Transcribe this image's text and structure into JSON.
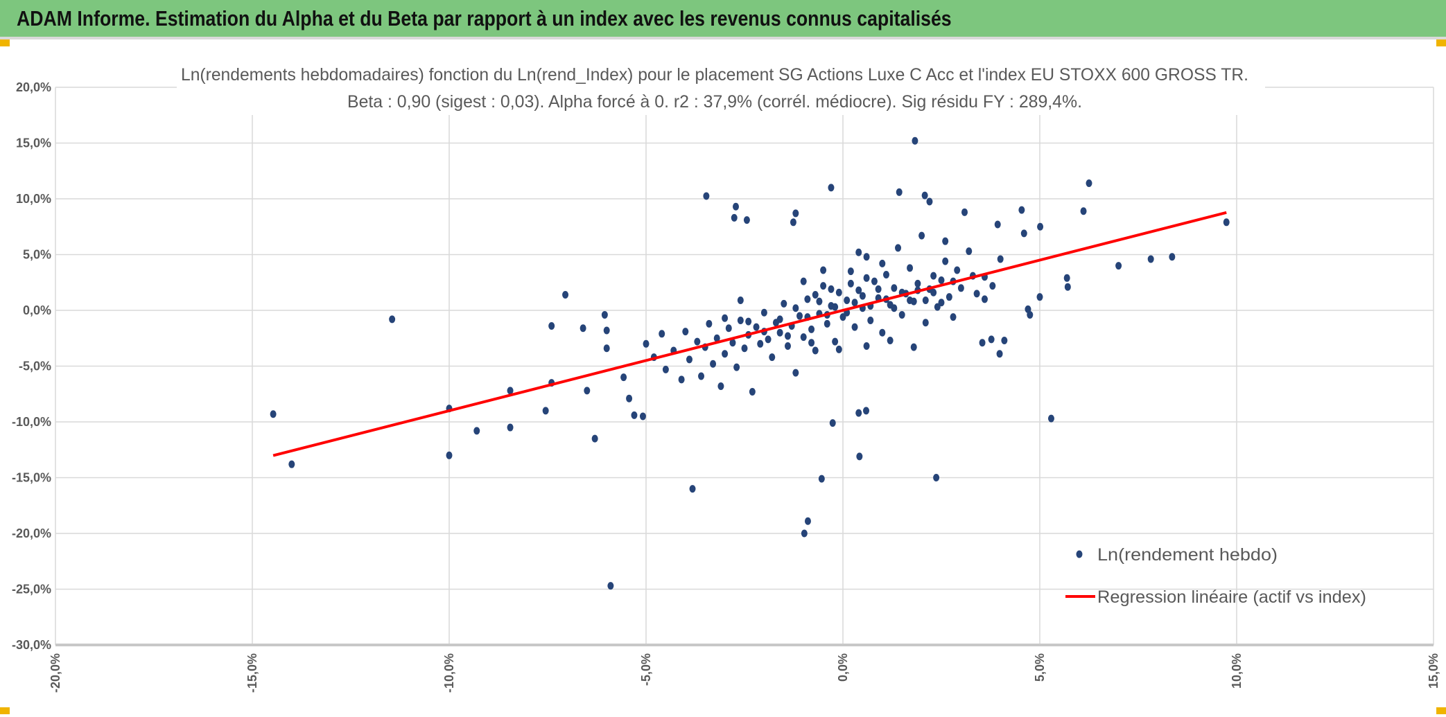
{
  "header": {
    "title": "ADAM Informe. Estimation du Alpha et du Beta par rapport à un index avec les revenus connus capitalisés",
    "background": "#7dc67e"
  },
  "chart_data": {
    "type": "scatter",
    "title": "Ln(rendements hebdomadaires) fonction du Ln(rend_Index) pour le placement SG Actions Luxe C Acc et l'index EU STOXX 600 GROSS TR.",
    "subtitle": "Beta : 0,90 (sigest : 0,03). Alpha forcé à 0. r2 : 37,9% (corrél. médiocre). Sig résidu FY : 289,4%.",
    "xlabel": "",
    "ylabel": "",
    "xlim": [
      -20,
      15
    ],
    "ylim": [
      -30,
      20
    ],
    "x_ticks": [
      "-20,0%",
      "-15,0%",
      "-10,0%",
      "-5,0%",
      "0,0%",
      "5,0%",
      "10,0%",
      "15,0%"
    ],
    "y_ticks": [
      "20,0%",
      "15,0%",
      "10,0%",
      "5,0%",
      "0,0%",
      "-5,0%",
      "-10,0%",
      "-15,0%",
      "-20,0%",
      "-25,0%",
      "-30,0%"
    ],
    "grid": true,
    "legend_position": "bottom-right",
    "series": [
      {
        "name": "Ln(rendement hebdo)",
        "color": "#264478",
        "points": [
          [
            -14.47,
            -9.3
          ],
          [
            -14.0,
            -13.8
          ],
          [
            -11.45,
            -0.8
          ],
          [
            -10.0,
            -8.8
          ],
          [
            -10.0,
            -13.0
          ],
          [
            -9.3,
            -10.8
          ],
          [
            -8.45,
            -7.2
          ],
          [
            -8.45,
            -10.5
          ],
          [
            -7.55,
            -9.0
          ],
          [
            -7.4,
            -1.4
          ],
          [
            -7.4,
            -6.5
          ],
          [
            -7.05,
            1.4
          ],
          [
            -6.6,
            -1.6
          ],
          [
            -6.3,
            -11.5
          ],
          [
            -6.5,
            -7.2
          ],
          [
            -6.05,
            -0.4
          ],
          [
            -6.0,
            -1.8
          ],
          [
            -5.9,
            -24.7
          ],
          [
            -6.0,
            -3.4
          ],
          [
            -5.57,
            -6.0
          ],
          [
            -5.43,
            -7.9
          ],
          [
            -5.3,
            -9.4
          ],
          [
            -5.08,
            -9.5
          ],
          [
            -5.0,
            -3.0
          ],
          [
            -3.82,
            -16.0
          ],
          [
            -3.47,
            10.25
          ],
          [
            -2.72,
            9.3
          ],
          [
            -2.76,
            8.3
          ],
          [
            -2.44,
            8.1
          ],
          [
            -1.2,
            8.7
          ],
          [
            -1.26,
            7.9
          ],
          [
            -0.3,
            11.0
          ],
          [
            -0.89,
            -18.9
          ],
          [
            -0.98,
            -20.0
          ],
          [
            -0.54,
            -15.1
          ],
          [
            -0.26,
            -10.1
          ],
          [
            0.4,
            -9.2
          ],
          [
            0.59,
            -9.0
          ],
          [
            0.42,
            -13.1
          ],
          [
            2.37,
            -15.0
          ],
          [
            1.83,
            15.2
          ],
          [
            1.43,
            10.6
          ],
          [
            2.08,
            10.3
          ],
          [
            2.2,
            9.75
          ],
          [
            3.09,
            8.8
          ],
          [
            4.54,
            9.0
          ],
          [
            6.11,
            8.9
          ],
          [
            6.25,
            11.4
          ],
          [
            9.74,
            7.9
          ],
          [
            8.36,
            4.8
          ],
          [
            7.82,
            4.6
          ],
          [
            7.0,
            4.0
          ],
          [
            5.69,
            2.9
          ],
          [
            5.71,
            2.1
          ],
          [
            5.29,
            -9.7
          ],
          [
            5.0,
            1.2
          ],
          [
            4.7,
            0.1
          ],
          [
            4.75,
            -0.4
          ],
          [
            3.98,
            -3.9
          ],
          [
            4.1,
            -2.7
          ],
          [
            3.77,
            -2.6
          ],
          [
            3.54,
            -2.9
          ],
          [
            5.01,
            7.5
          ],
          [
            4.6,
            6.9
          ],
          [
            3.93,
            7.7
          ],
          [
            2.6,
            6.2
          ],
          [
            -4.8,
            -4.2
          ],
          [
            -4.6,
            -2.1
          ],
          [
            -4.5,
            -5.3
          ],
          [
            -4.3,
            -3.6
          ],
          [
            -4.1,
            -6.2
          ],
          [
            -4.0,
            -1.9
          ],
          [
            -3.9,
            -4.4
          ],
          [
            -3.7,
            -2.8
          ],
          [
            -3.6,
            -5.9
          ],
          [
            -3.5,
            -3.3
          ],
          [
            -3.4,
            -1.2
          ],
          [
            -3.3,
            -4.8
          ],
          [
            -3.2,
            -2.5
          ],
          [
            -3.1,
            -6.8
          ],
          [
            -3.0,
            -3.9
          ],
          [
            -2.9,
            -1.6
          ],
          [
            -2.8,
            -2.9
          ],
          [
            -2.7,
            -5.1
          ],
          [
            -2.6,
            -0.9
          ],
          [
            -2.5,
            -3.4
          ],
          [
            -2.4,
            -2.2
          ],
          [
            -2.3,
            -7.3
          ],
          [
            -2.2,
            -1.5
          ],
          [
            -2.1,
            -3.0
          ],
          [
            -2.0,
            -0.2
          ],
          [
            -1.9,
            -2.6
          ],
          [
            -1.8,
            -4.2
          ],
          [
            -1.7,
            -1.1
          ],
          [
            -1.6,
            -2.0
          ],
          [
            -1.5,
            0.6
          ],
          [
            -1.4,
            -3.2
          ],
          [
            -1.3,
            -1.4
          ],
          [
            -1.2,
            -5.6
          ],
          [
            -1.1,
            -0.5
          ],
          [
            -1.0,
            -2.4
          ],
          [
            -0.9,
            1.0
          ],
          [
            -0.8,
            -1.7
          ],
          [
            -0.7,
            -3.6
          ],
          [
            -0.6,
            -0.3
          ],
          [
            -0.5,
            2.2
          ],
          [
            -0.4,
            -1.2
          ],
          [
            -0.3,
            0.4
          ],
          [
            -0.2,
            -2.8
          ],
          [
            -0.1,
            1.6
          ],
          [
            0.0,
            -0.6
          ],
          [
            0.1,
            0.9
          ],
          [
            0.2,
            3.5
          ],
          [
            0.3,
            -1.5
          ],
          [
            0.4,
            1.8
          ],
          [
            0.5,
            0.2
          ],
          [
            0.6,
            4.8
          ],
          [
            0.7,
            -0.9
          ],
          [
            0.8,
            2.6
          ],
          [
            0.9,
            1.1
          ],
          [
            1.0,
            -2.0
          ],
          [
            1.1,
            3.2
          ],
          [
            1.2,
            0.5
          ],
          [
            1.3,
            2.0
          ],
          [
            1.4,
            5.6
          ],
          [
            1.5,
            -0.4
          ],
          [
            1.6,
            1.5
          ],
          [
            1.7,
            3.8
          ],
          [
            1.8,
            0.8
          ],
          [
            1.9,
            2.4
          ],
          [
            2.0,
            6.7
          ],
          [
            2.1,
            -1.1
          ],
          [
            2.2,
            1.9
          ],
          [
            2.3,
            3.1
          ],
          [
            2.4,
            0.3
          ],
          [
            2.5,
            2.7
          ],
          [
            2.6,
            4.4
          ],
          [
            2.7,
            1.2
          ],
          [
            2.8,
            -0.6
          ],
          [
            2.9,
            3.6
          ],
          [
            3.0,
            2.0
          ],
          [
            3.2,
            5.3
          ],
          [
            3.4,
            1.5
          ],
          [
            3.6,
            3.0
          ],
          [
            3.8,
            2.2
          ],
          [
            4.0,
            4.6
          ],
          [
            -1.6,
            -0.8
          ],
          [
            -1.2,
            0.2
          ],
          [
            -0.9,
            -0.6
          ],
          [
            -0.6,
            0.8
          ],
          [
            -0.4,
            -0.4
          ],
          [
            -0.2,
            0.3
          ],
          [
            0.1,
            -0.2
          ],
          [
            0.3,
            0.7
          ],
          [
            0.5,
            1.3
          ],
          [
            0.7,
            0.4
          ],
          [
            0.9,
            1.9
          ],
          [
            1.1,
            1.0
          ],
          [
            1.3,
            0.2
          ],
          [
            1.5,
            1.6
          ],
          [
            1.7,
            0.9
          ],
          [
            1.9,
            1.8
          ],
          [
            2.1,
            0.9
          ],
          [
            2.3,
            1.6
          ],
          [
            2.5,
            0.7
          ],
          [
            0.2,
            2.4
          ],
          [
            0.6,
            2.9
          ],
          [
            -0.3,
            1.9
          ],
          [
            -0.7,
            1.4
          ],
          [
            1.0,
            4.2
          ],
          [
            0.4,
            5.2
          ],
          [
            -2.4,
            -1.0
          ],
          [
            -2.0,
            -1.9
          ],
          [
            -1.4,
            -2.3
          ],
          [
            -0.8,
            -2.9
          ],
          [
            -0.1,
            -3.5
          ],
          [
            0.6,
            -3.2
          ],
          [
            1.2,
            -2.7
          ],
          [
            1.8,
            -3.3
          ],
          [
            -3.0,
            -0.7
          ],
          [
            -2.6,
            0.9
          ],
          [
            -1.0,
            2.6
          ],
          [
            -0.5,
            3.6
          ],
          [
            2.8,
            2.6
          ],
          [
            3.3,
            3.1
          ],
          [
            3.6,
            1.0
          ]
        ]
      },
      {
        "name": "Regression linéaire (actif vs index)",
        "color": "#ff0000",
        "points": [
          [
            -14.47,
            -13.02
          ],
          [
            9.74,
            8.77
          ]
        ]
      }
    ]
  }
}
